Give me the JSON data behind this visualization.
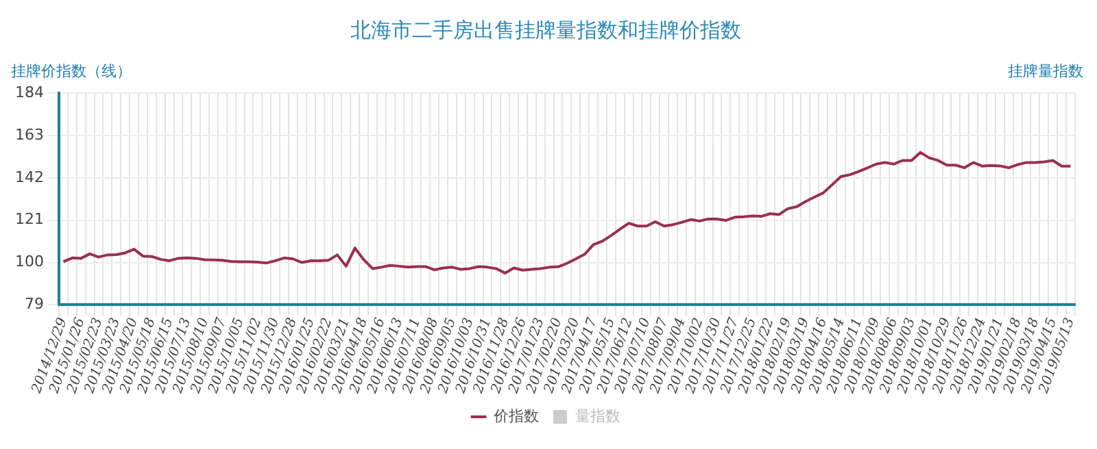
{
  "chart_data": {
    "type": "line",
    "title": "北海市二手房出售挂牌量指数和挂牌价指数",
    "ylabel": "挂牌价指数（线）",
    "y2label": "挂牌量指数",
    "categories": [
      "2014/12/29",
      null,
      "2015/01/26",
      null,
      "2015/02/23",
      null,
      "2015/03/23",
      null,
      "2015/04/20",
      null,
      "2015/05/18",
      null,
      "2015/06/15",
      null,
      "2015/07/13",
      null,
      "2015/08/10",
      null,
      "2015/09/07",
      null,
      "2015/10/05",
      null,
      "2015/11/02",
      null,
      "2015/11/30",
      null,
      "2015/12/28",
      null,
      "2016/01/25",
      null,
      "2016/02/22",
      null,
      "2016/03/21",
      null,
      "2016/04/18",
      null,
      "2016/05/16",
      null,
      "2016/06/13",
      null,
      "2016/07/11",
      null,
      "2016/08/08",
      null,
      "2016/09/05",
      null,
      "2016/10/03",
      null,
      "2016/10/31",
      null,
      "2016/11/28",
      null,
      "2016/12/26",
      null,
      "2017/01/23",
      null,
      "2017/02/20",
      null,
      "2017/03/20",
      null,
      "2017/04/17",
      null,
      "2017/05/15",
      null,
      "2017/06/12",
      null,
      "2017/07/10",
      null,
      "2017/08/07",
      null,
      "2017/09/04",
      null,
      "2017/10/02",
      null,
      "2017/10/30",
      null,
      "2017/11/27",
      null,
      "2017/12/25",
      null,
      "2018/01/22",
      null,
      "2018/02/19",
      null,
      "2018/03/19",
      null,
      "2018/04/16",
      null,
      "2018/05/14",
      null,
      "2018/06/11",
      null,
      "2018/07/09",
      null,
      "2018/08/06",
      null,
      "2018/09/03",
      null,
      "2018/10/01",
      null,
      "2018/10/29",
      null,
      "2018/11/26",
      null,
      "2018/12/24",
      null,
      "2019/01/21",
      null,
      "2019/02/18",
      null,
      "2019/03/18",
      null,
      "2019/04/15",
      null,
      "2019/05/13"
    ],
    "series": [
      {
        "name": "价指数",
        "color": "#9b2f4f",
        "values": [
          100.4,
          102.3,
          102.1,
          104.3,
          102.7,
          103.8,
          103.9,
          104.8,
          106.6,
          103.2,
          103.0,
          101.6,
          100.9,
          102.1,
          102.3,
          102.1,
          101.4,
          101.3,
          101.1,
          100.5,
          100.4,
          100.4,
          100.2,
          99.8,
          100.9,
          102.3,
          101.8,
          100.0,
          100.9,
          100.9,
          101.1,
          103.8,
          98.2,
          107.2,
          101.4,
          97.0,
          97.7,
          98.6,
          98.2,
          97.7,
          98.0,
          98.0,
          96.4,
          97.3,
          97.7,
          96.6,
          97.0,
          98.0,
          97.7,
          97.0,
          94.8,
          97.3,
          96.2,
          96.6,
          97.0,
          97.7,
          97.9,
          99.6,
          101.8,
          104.1,
          108.9,
          110.6,
          113.4,
          116.5,
          119.5,
          118.1,
          118.1,
          120.2,
          118.1,
          118.8,
          119.9,
          121.3,
          120.6,
          121.6,
          121.6,
          120.9,
          122.5,
          122.7,
          123.1,
          122.9,
          124.2,
          123.8,
          126.7,
          127.7,
          130.2,
          132.4,
          134.5,
          138.5,
          142.6,
          143.5,
          145.1,
          146.9,
          148.8,
          149.6,
          148.8,
          150.6,
          150.6,
          154.6,
          151.9,
          150.6,
          148.3,
          148.3,
          147.0,
          149.6,
          147.8,
          148.1,
          147.9,
          147.0,
          148.5,
          149.6,
          149.6,
          149.9,
          150.6,
          147.8,
          147.8
        ]
      },
      {
        "name": "量指数",
        "type": "bar",
        "color": "#cccccc",
        "values": [
          null,
          null,
          null,
          null,
          null,
          null,
          null,
          null,
          null,
          null,
          null,
          null,
          null,
          null,
          null,
          null,
          null,
          null,
          null,
          null,
          null,
          null,
          null,
          null,
          null,
          null,
          null,
          null,
          null,
          null,
          null,
          null,
          null,
          null,
          null,
          null,
          null,
          null,
          null,
          null,
          null,
          null,
          null,
          null,
          null,
          null,
          null,
          null,
          null,
          null,
          null,
          null,
          null,
          null,
          null,
          null,
          null,
          null,
          null,
          null,
          null,
          null,
          null,
          null,
          null,
          null,
          null,
          null,
          null,
          null,
          null,
          null,
          null,
          null,
          null,
          null,
          null,
          null,
          null,
          null,
          null,
          null,
          null,
          null,
          null,
          null,
          null,
          null,
          null,
          null,
          null,
          null,
          null,
          null,
          null,
          null,
          null,
          null,
          null,
          null,
          null,
          null,
          null,
          null,
          null,
          null,
          null,
          null,
          null,
          null,
          null,
          null,
          null,
          null,
          null
        ]
      }
    ],
    "ylim": [
      79,
      184
    ],
    "yticks": [
      79,
      100,
      121,
      142,
      163,
      184
    ],
    "grid": true,
    "legend": "bottom",
    "marker": "none",
    "line_style": "solid"
  }
}
